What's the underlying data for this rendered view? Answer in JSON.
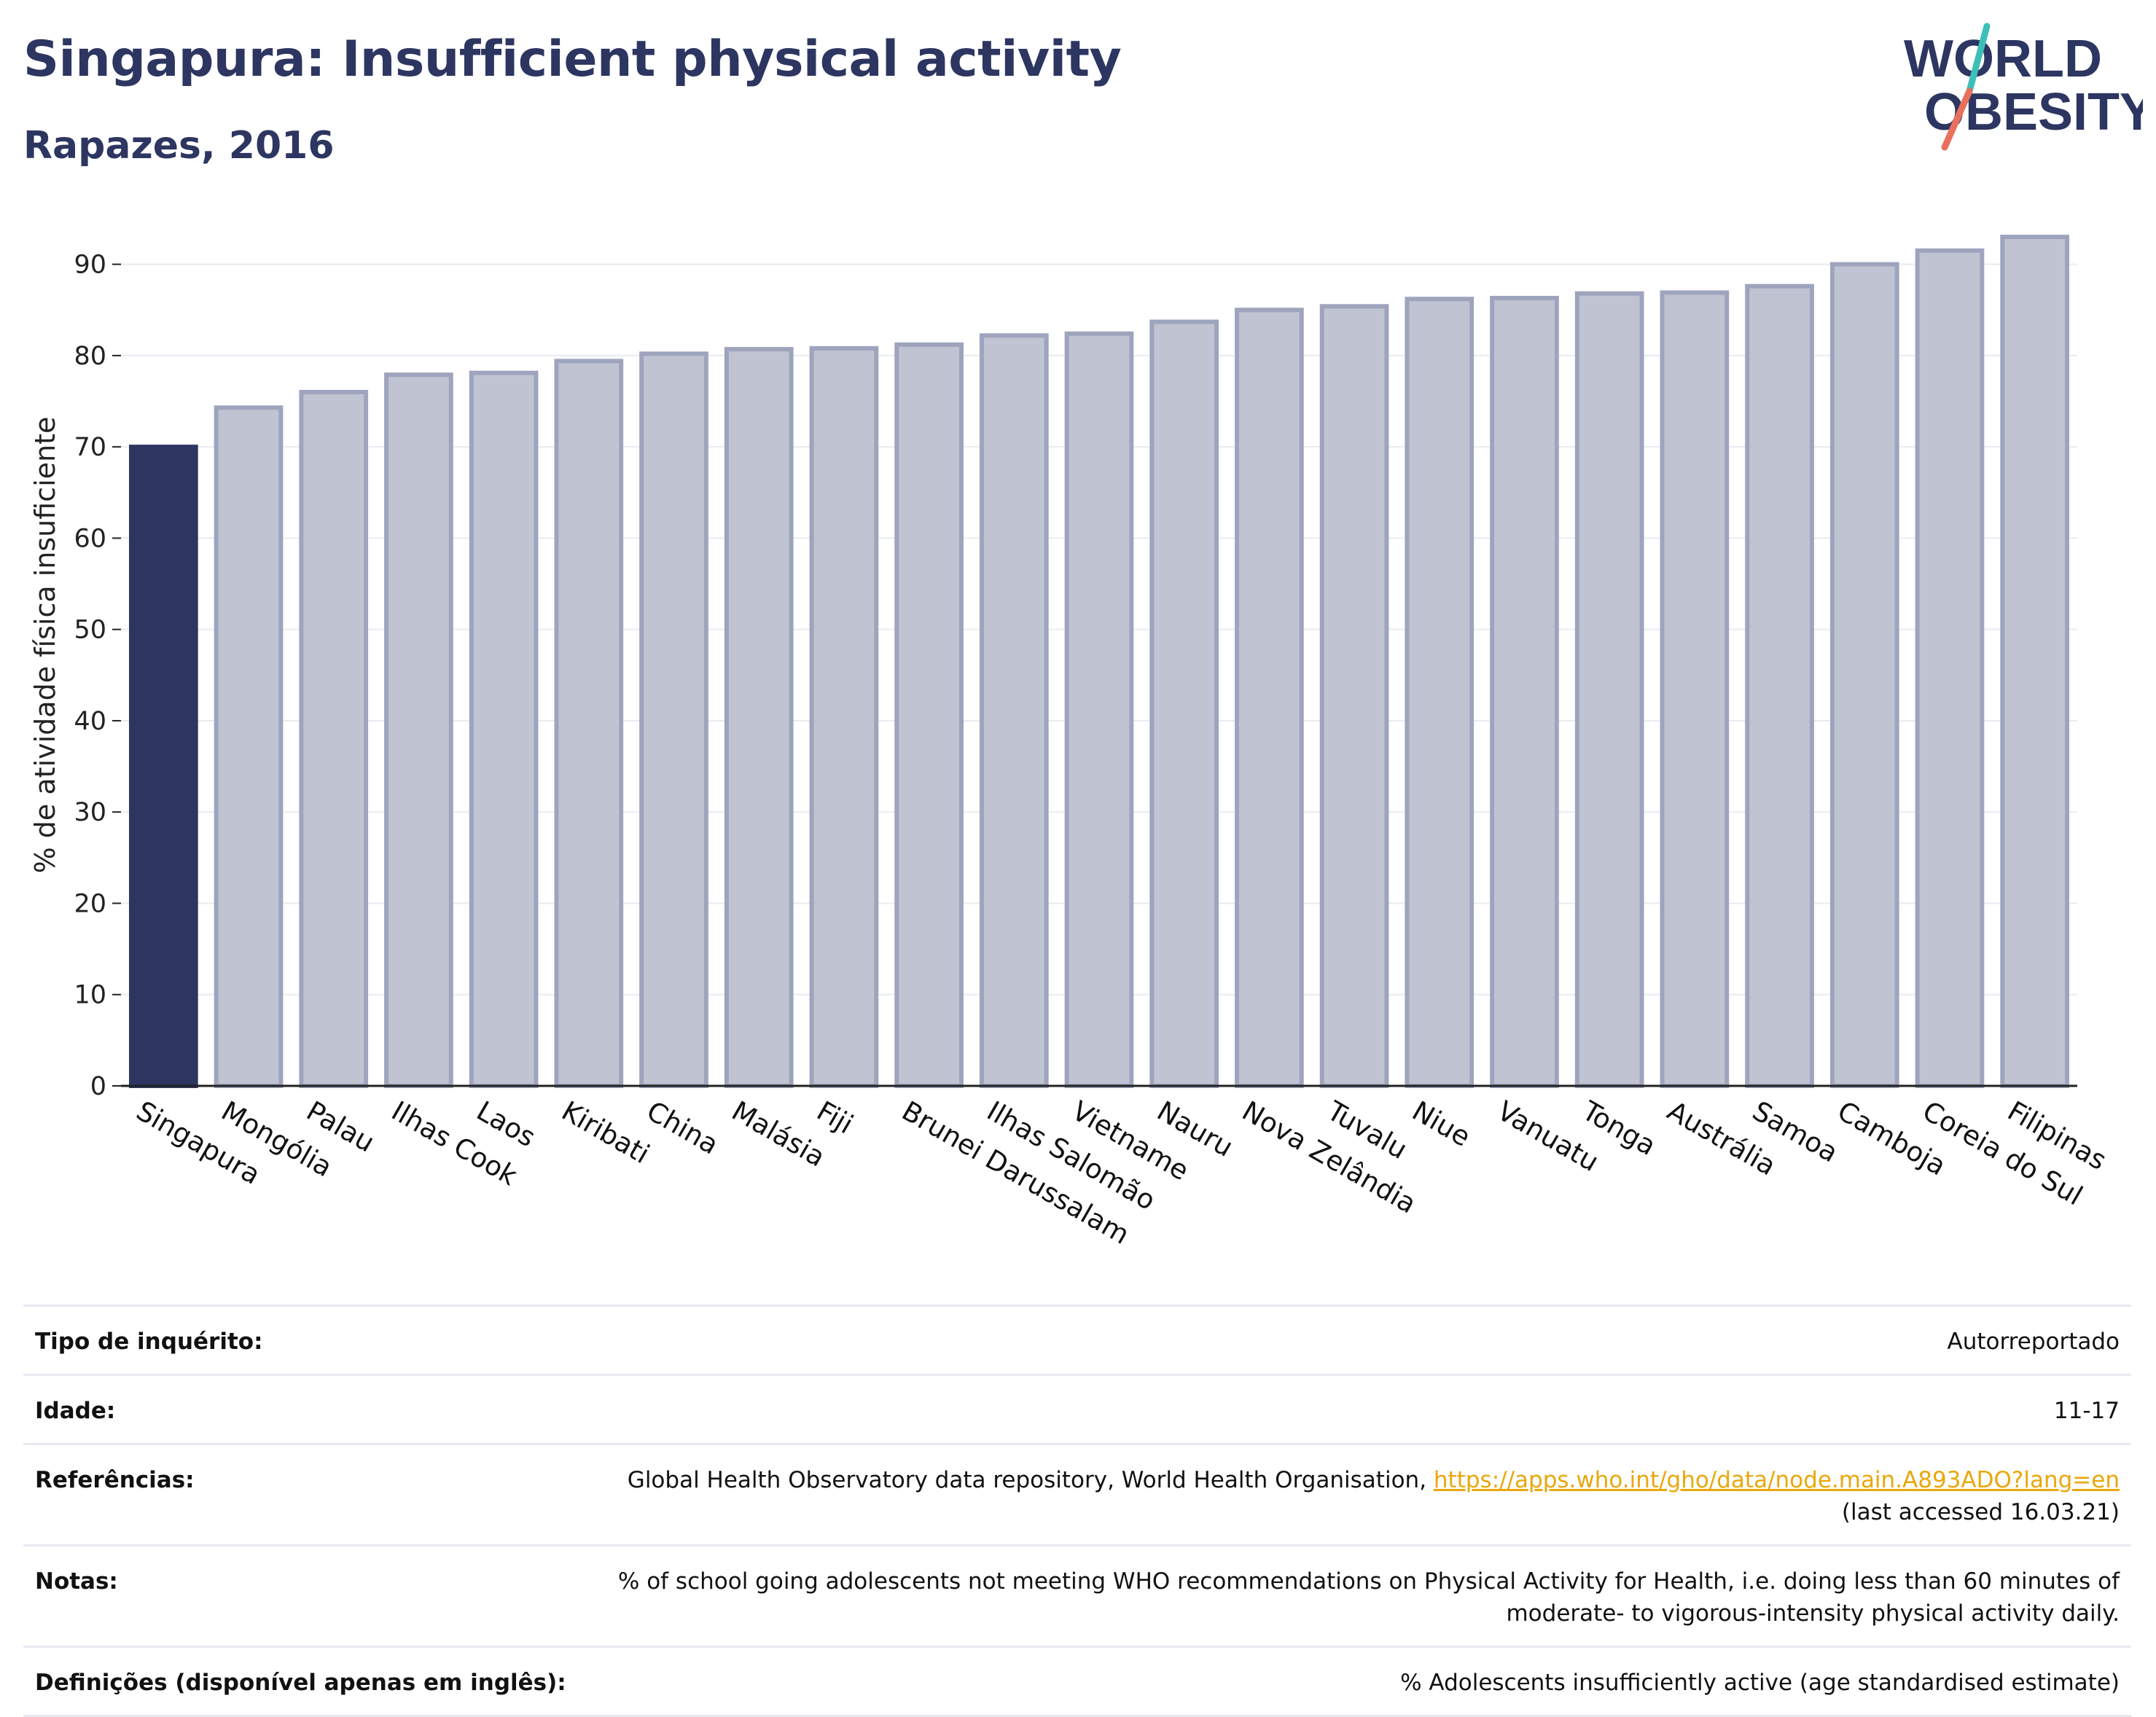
{
  "header": {
    "title": "Singapura: Insufficient physical activity",
    "subtitle": "Rapazes, 2016",
    "logo_line1": "WORLD",
    "logo_line2": "OBESITY"
  },
  "colors": {
    "title": "#2d3561",
    "highlight_bar": "#2d3561",
    "other_bar_fill": "#c0c3d1",
    "other_bar_stroke": "#9ea4bd",
    "gridline": "#e9ebf2",
    "link": "#e8a80c",
    "logo_teal": "#3dbfb8",
    "logo_coral": "#e8715e"
  },
  "chart_data": {
    "type": "bar",
    "title": "Singapura: Insufficient physical activity",
    "subtitle": "Rapazes, 2016",
    "xlabel": "",
    "ylabel": "% de atividade física insuficiente",
    "ylim": [
      0,
      95
    ],
    "yticks": [
      0,
      10,
      20,
      30,
      40,
      50,
      60,
      70,
      80,
      90
    ],
    "grid": true,
    "highlight": "Singapura",
    "categories": [
      "Singapura",
      "Mongólia",
      "Palau",
      "Ilhas Cook",
      "Laos",
      "Kiribati",
      "China",
      "Malásia",
      "Fiji",
      "Brunei Darussalam",
      "Ilhas Salomão",
      "Vietname",
      "Nauru",
      "Nova Zelândia",
      "Tuvalu",
      "Niue",
      "Vanuatu",
      "Tonga",
      "Austrália",
      "Samoa",
      "Camboja",
      "Coreia do Sul",
      "Filipinas"
    ],
    "values": [
      70.0,
      74.3,
      76.0,
      77.9,
      78.1,
      79.4,
      80.2,
      80.7,
      80.8,
      81.2,
      82.2,
      82.4,
      83.7,
      85.0,
      85.4,
      86.2,
      86.3,
      86.8,
      86.9,
      87.6,
      90.0,
      91.5,
      93.0
    ]
  },
  "info": {
    "rows": [
      {
        "label": "Tipo de inquérito:",
        "value": "Autorreportado"
      },
      {
        "label": "Idade:",
        "value": "11-17"
      },
      {
        "label": "Referências:",
        "value": "Global Health Observatory data repository, World Health Organisation,",
        "link": "https://apps.who.int/gho/data/node.main.A893ADO?lang=en",
        "value2": "(last accessed 16.03.21)"
      },
      {
        "label": "Notas:",
        "value": "% of school going adolescents not meeting WHO recommendations on Physical Activity for Health, i.e. doing less than 60 minutes of",
        "value2": "moderate- to vigorous-intensity physical activity daily."
      },
      {
        "label": "Definições (disponível apenas em inglês):",
        "value": "% Adolescents insufficiently active (age standardised estimate)"
      }
    ]
  }
}
